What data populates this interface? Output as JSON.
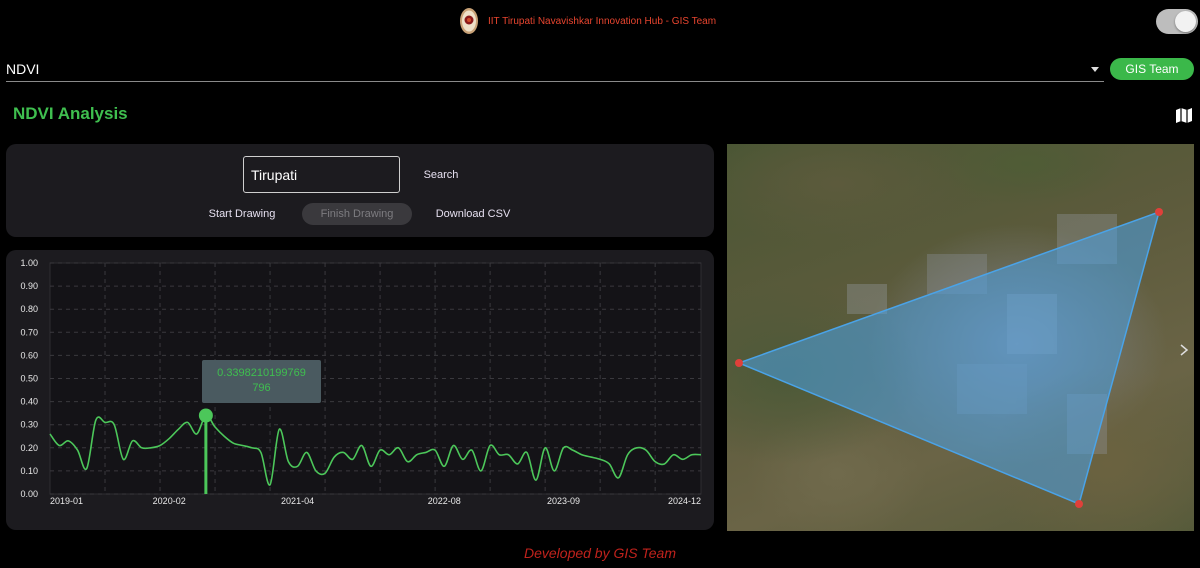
{
  "header": {
    "title": "IIT Tirupati Navavishkar Innovation Hub - GIS Team",
    "logo_icon": "iit-tirupati-logo",
    "theme_toggle_on": true
  },
  "layer_select": {
    "value": "NDVI",
    "icon": "chevron-down-icon"
  },
  "team_button": {
    "label": "GIS Team",
    "color": "#3bb84a"
  },
  "section": {
    "title": "NDVI Analysis",
    "map_icon": "map-icon"
  },
  "controls": {
    "search_value": "Tirupati",
    "search_label": "Search",
    "start_drawing_label": "Start Drawing",
    "finish_drawing_label": "Finish Drawing",
    "download_csv_label": "Download CSV"
  },
  "chart_data": {
    "type": "line",
    "title": "",
    "xlabel": "",
    "ylabel": "",
    "ylim": [
      0,
      1
    ],
    "yticks": [
      "0.00",
      "0.10",
      "0.20",
      "0.30",
      "0.40",
      "0.50",
      "0.60",
      "0.70",
      "0.80",
      "0.90",
      "1.00"
    ],
    "xticks": [
      "2019-01",
      "2020-02",
      "2021-04",
      "2022-08",
      "2023-09",
      "2024-12"
    ],
    "grid": true,
    "line_color": "#4cc75a",
    "series": [
      {
        "x": [
          "2019-01",
          "2019-02",
          "2019-03",
          "2019-04",
          "2019-05",
          "2019-06",
          "2019-07",
          "2019-08",
          "2019-09",
          "2019-10",
          "2019-11",
          "2019-12",
          "2020-01",
          "2020-02",
          "2020-03",
          "2020-04",
          "2020-05",
          "2020-06",
          "2020-07",
          "2020-08",
          "2020-09",
          "2020-10",
          "2020-11",
          "2020-12",
          "2021-01",
          "2021-02",
          "2021-03",
          "2021-04",
          "2021-05",
          "2021-06",
          "2021-07",
          "2021-08",
          "2021-09",
          "2021-10",
          "2021-11",
          "2021-12",
          "2022-01",
          "2022-02",
          "2022-03",
          "2022-04",
          "2022-05",
          "2022-06",
          "2022-07",
          "2022-08",
          "2022-09",
          "2022-10",
          "2022-11",
          "2022-12",
          "2023-01",
          "2023-02",
          "2023-03",
          "2023-04",
          "2023-05",
          "2023-06",
          "2023-07",
          "2023-08",
          "2023-09",
          "2023-10",
          "2023-11",
          "2023-12",
          "2024-01",
          "2024-02",
          "2024-03",
          "2024-04",
          "2024-05",
          "2024-06",
          "2024-07",
          "2024-08",
          "2024-09",
          "2024-10",
          "2024-11",
          "2024-12"
        ],
        "values": [
          0.26,
          0.21,
          0.23,
          0.19,
          0.11,
          0.32,
          0.31,
          0.3,
          0.15,
          0.23,
          0.2,
          0.2,
          0.21,
          0.24,
          0.28,
          0.31,
          0.26,
          0.34,
          0.29,
          0.25,
          0.22,
          0.21,
          0.2,
          0.18,
          0.04,
          0.28,
          0.14,
          0.12,
          0.18,
          0.1,
          0.09,
          0.16,
          0.18,
          0.15,
          0.21,
          0.12,
          0.19,
          0.17,
          0.2,
          0.14,
          0.17,
          0.18,
          0.19,
          0.12,
          0.21,
          0.15,
          0.19,
          0.1,
          0.21,
          0.17,
          0.17,
          0.13,
          0.18,
          0.06,
          0.2,
          0.1,
          0.2,
          0.19,
          0.17,
          0.16,
          0.15,
          0.13,
          0.07,
          0.17,
          0.2,
          0.19,
          0.14,
          0.13,
          0.17,
          0.15,
          0.17,
          0.17
        ]
      }
    ],
    "highlight": {
      "x": "2020-06",
      "value": 0.3398210199769796,
      "tooltip_line1": "0.3398210199769",
      "tooltip_line2": "796"
    }
  },
  "map": {
    "polygon_fill": "#4aa3e8",
    "vertex_color": "#e0403a",
    "vertices_lonlat_label": "",
    "arrow_icon": "chevron-right-icon"
  },
  "footer": {
    "text": "Developed by GIS Team"
  }
}
